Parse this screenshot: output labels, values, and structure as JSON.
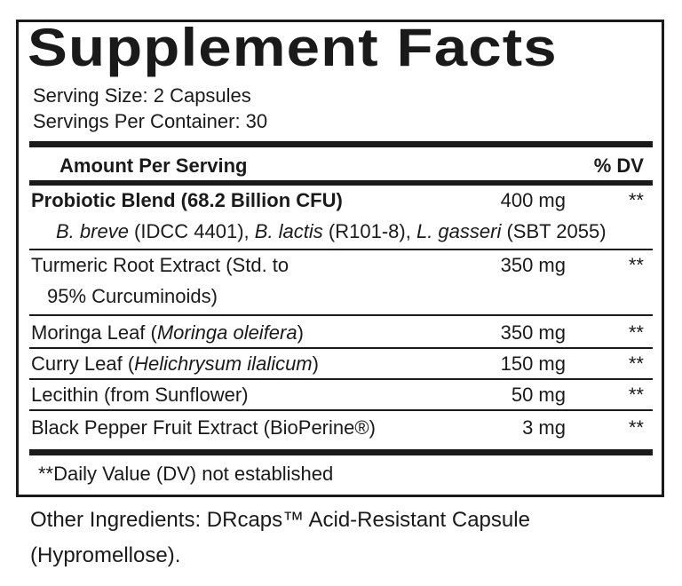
{
  "title": "Supplement Facts",
  "serving_size": "Serving Size: 2 Capsules",
  "servings_per_container": "Servings Per Container: 30",
  "header": {
    "amount": "Amount Per Serving",
    "dv": "% DV"
  },
  "rows": [
    {
      "name": "Probiotic Blend (68.2 Billion CFU)",
      "amount": "400 mg",
      "dv": "**"
    },
    {
      "strains": [
        {
          "species": "B. breve",
          "strain": " (IDCC 4401), "
        },
        {
          "species": "B. lactis",
          "strain": " (R101-8), "
        },
        {
          "species": "L. gasseri",
          "strain": " (SBT 2055)"
        }
      ]
    },
    {
      "name": "Turmeric Root Extract (Std. to",
      "name2": "95% Curcuminoids)",
      "amount": "350 mg",
      "dv": "**"
    },
    {
      "name": "Moringa Leaf (",
      "latin": "Moringa oleifera",
      "close": ")",
      "amount": "350 mg",
      "dv": "**"
    },
    {
      "name": "Curry Leaf (",
      "latin": "Helichrysum ilalicum",
      "close": ")",
      "amount": "150 mg",
      "dv": "**"
    },
    {
      "name": "Lecithin (from Sunflower)",
      "amount": "50 mg",
      "dv": "**"
    },
    {
      "name": "Black Pepper Fruit Extract (BioPerine®)",
      "amount": "3 mg",
      "dv": "**"
    }
  ],
  "footnote": "**Daily Value (DV) not established",
  "other_ingredients": {
    "line1": "Other Ingredients: DRcaps™ Acid-Resistant Capsule",
    "line2": "(Hypromellose)."
  }
}
